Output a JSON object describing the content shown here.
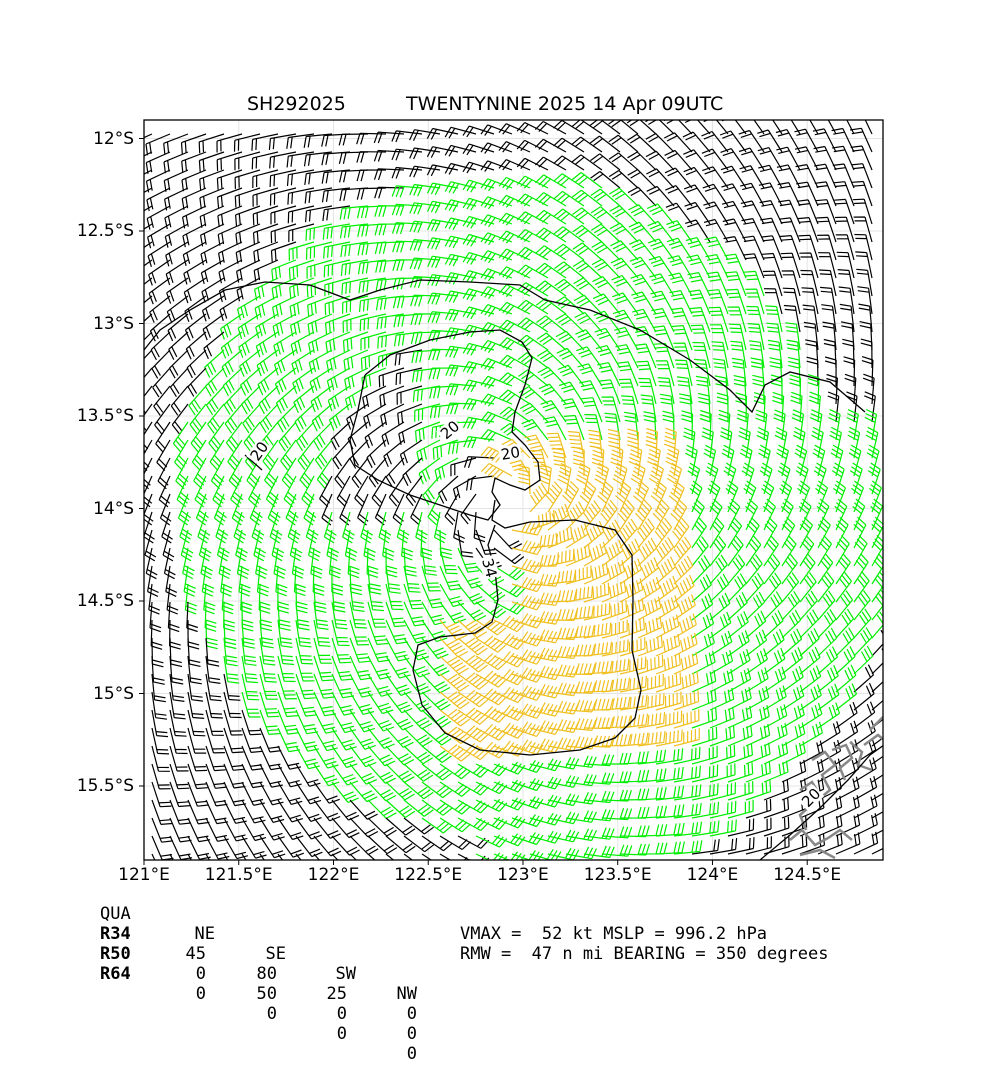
{
  "title": {
    "storm_id": "SH292025",
    "name_time": "TWENTYNINE 2025 14 Apr 09UTC"
  },
  "axes": {
    "lat_ticks": [
      "12°S",
      "12.5°S",
      "13°S",
      "13.5°S",
      "14°S",
      "14.5°S",
      "15°S",
      "15.5°S"
    ],
    "lon_ticks": [
      "121°E",
      "121.5°E",
      "122°E",
      "122.5°E",
      "123°E",
      "123.5°E",
      "124°E",
      "124.5°E"
    ],
    "lat_range": [
      -11.9,
      -15.9
    ],
    "lon_range": [
      121.0,
      124.9
    ]
  },
  "wind_field": {
    "center": {
      "lon": 122.92,
      "lat": -13.97
    },
    "colors": {
      "below_34kt": "#000000",
      "gale_34_50kt": "#00ee00",
      "storm_50_64kt": "#f0c020",
      "land": "#888888"
    },
    "contour_labels": [
      "20",
      "20",
      "20",
      "34",
      "20"
    ]
  },
  "radii_table": {
    "headers": [
      "QUA",
      "NE",
      "SE",
      "SW",
      "NW"
    ],
    "rows": [
      {
        "label": "R34",
        "values": [
          "45",
          "80",
          "25",
          "0"
        ]
      },
      {
        "label": "R50",
        "values": [
          "0",
          "50",
          "0",
          "0"
        ]
      },
      {
        "label": "R64",
        "values": [
          "0",
          "0",
          "0",
          "0"
        ]
      }
    ]
  },
  "summary": {
    "line1": "VMAX =  52 kt MSLP = 996.2 hPa",
    "line2": "RMW =  47 n mi BEARING = 350 degrees"
  }
}
